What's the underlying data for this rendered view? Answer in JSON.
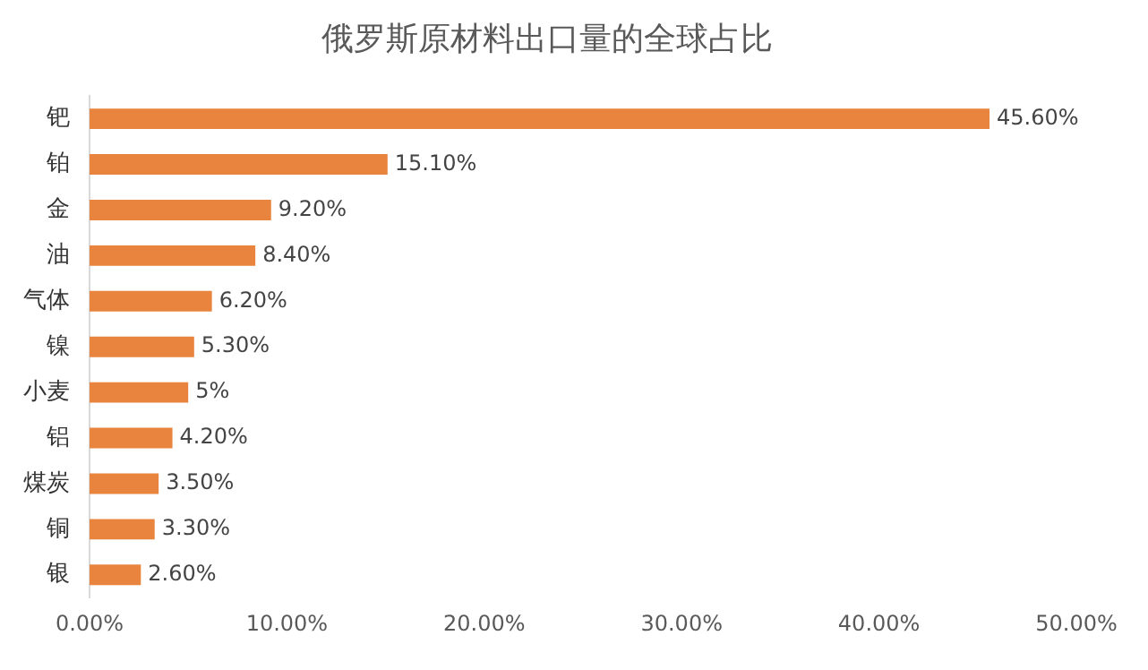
{
  "chart_data": {
    "type": "bar",
    "orientation": "horizontal",
    "title": "俄罗斯原材料出口量的全球占比",
    "categories": [
      "钯",
      "铂",
      "金",
      "油",
      "气体",
      "镍",
      "小麦",
      "铝",
      "煤炭",
      "铜",
      "银"
    ],
    "values": [
      45.6,
      15.1,
      9.2,
      8.4,
      6.2,
      5.3,
      5,
      4.2,
      3.5,
      3.3,
      2.6
    ],
    "value_labels": [
      "45.60%",
      "15.10%",
      "9.20%",
      "8.40%",
      "6.20%",
      "5.30%",
      "5%",
      "4.20%",
      "3.50%",
      "3.30%",
      "2.60%"
    ],
    "color": "#e8843e",
    "xlim": [
      0,
      50
    ],
    "xticks": [
      {
        "value": 0,
        "label": "0.00%"
      },
      {
        "value": 10,
        "label": "10.00%"
      },
      {
        "value": 20,
        "label": "20.00%"
      },
      {
        "value": 30,
        "label": "30.00%"
      },
      {
        "value": 40,
        "label": "40.00%"
      },
      {
        "value": 50,
        "label": "50.00%"
      }
    ],
    "grid": false,
    "legend": false
  }
}
